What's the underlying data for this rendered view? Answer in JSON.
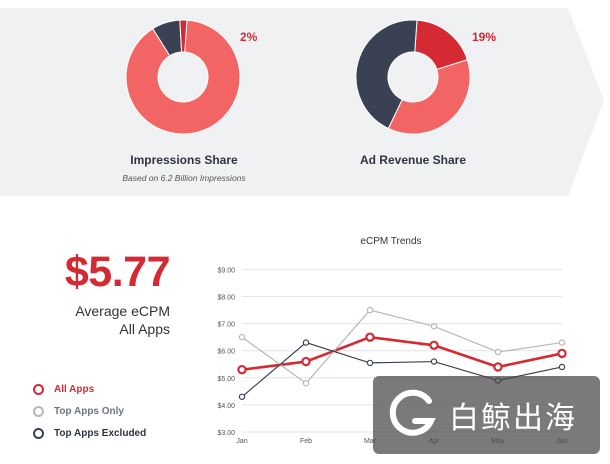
{
  "impressions": {
    "title": "Impressions Share",
    "subtitle": "Based on 6.2 Billion Impressions",
    "pct_label": "2%",
    "segments": [
      {
        "name": "All Apps",
        "value": 90,
        "color": "#f36464"
      },
      {
        "name": "Top Apps Excluded",
        "value": 8,
        "color": "#3a4152"
      },
      {
        "name": "Top Apps Only",
        "value": 2,
        "color": "#d52a33"
      }
    ]
  },
  "revenue": {
    "title": "Ad Revenue Share",
    "pct_label": "19%",
    "segments": [
      {
        "name": "Top Apps Only",
        "value": 19,
        "color": "#d52a33"
      },
      {
        "name": "All Apps",
        "value": 37,
        "color": "#f36464"
      },
      {
        "name": "Top Apps Excluded",
        "value": 44,
        "color": "#3a4152"
      }
    ]
  },
  "stat": {
    "value": "$5.77",
    "label_line1": "Average eCPM",
    "label_line2": "All Apps"
  },
  "legend": [
    {
      "label": "All Apps",
      "color": "#d52a33"
    },
    {
      "label": "Top Apps Only",
      "color": "#b4b8bf"
    },
    {
      "label": "Top Apps Excluded",
      "color": "#3a4152"
    }
  ],
  "watermark": {
    "text": "白鲸出海"
  },
  "chart_data": {
    "type": "line",
    "title": "eCPM Trends",
    "categories": [
      "Jan",
      "Feb",
      "Mar",
      "Apr",
      "May",
      "Jun"
    ],
    "y_ticks": [
      "$3.00",
      "$4.00",
      "$5.00",
      "$6.00",
      "$7.00",
      "$8.00",
      "$9.00"
    ],
    "ylim": [
      3,
      9.2
    ],
    "grid": true,
    "series": [
      {
        "name": "All Apps",
        "color": "#d52a33",
        "values": [
          5.3,
          5.6,
          6.5,
          6.2,
          5.4,
          5.9
        ]
      },
      {
        "name": "Top Apps Only",
        "color": "#b4b8bf",
        "values": [
          6.5,
          4.8,
          7.5,
          6.9,
          5.95,
          6.3
        ]
      },
      {
        "name": "Top Apps Excluded",
        "color": "#3a4152",
        "values": [
          4.3,
          6.3,
          5.55,
          5.6,
          4.9,
          5.4
        ]
      }
    ]
  }
}
